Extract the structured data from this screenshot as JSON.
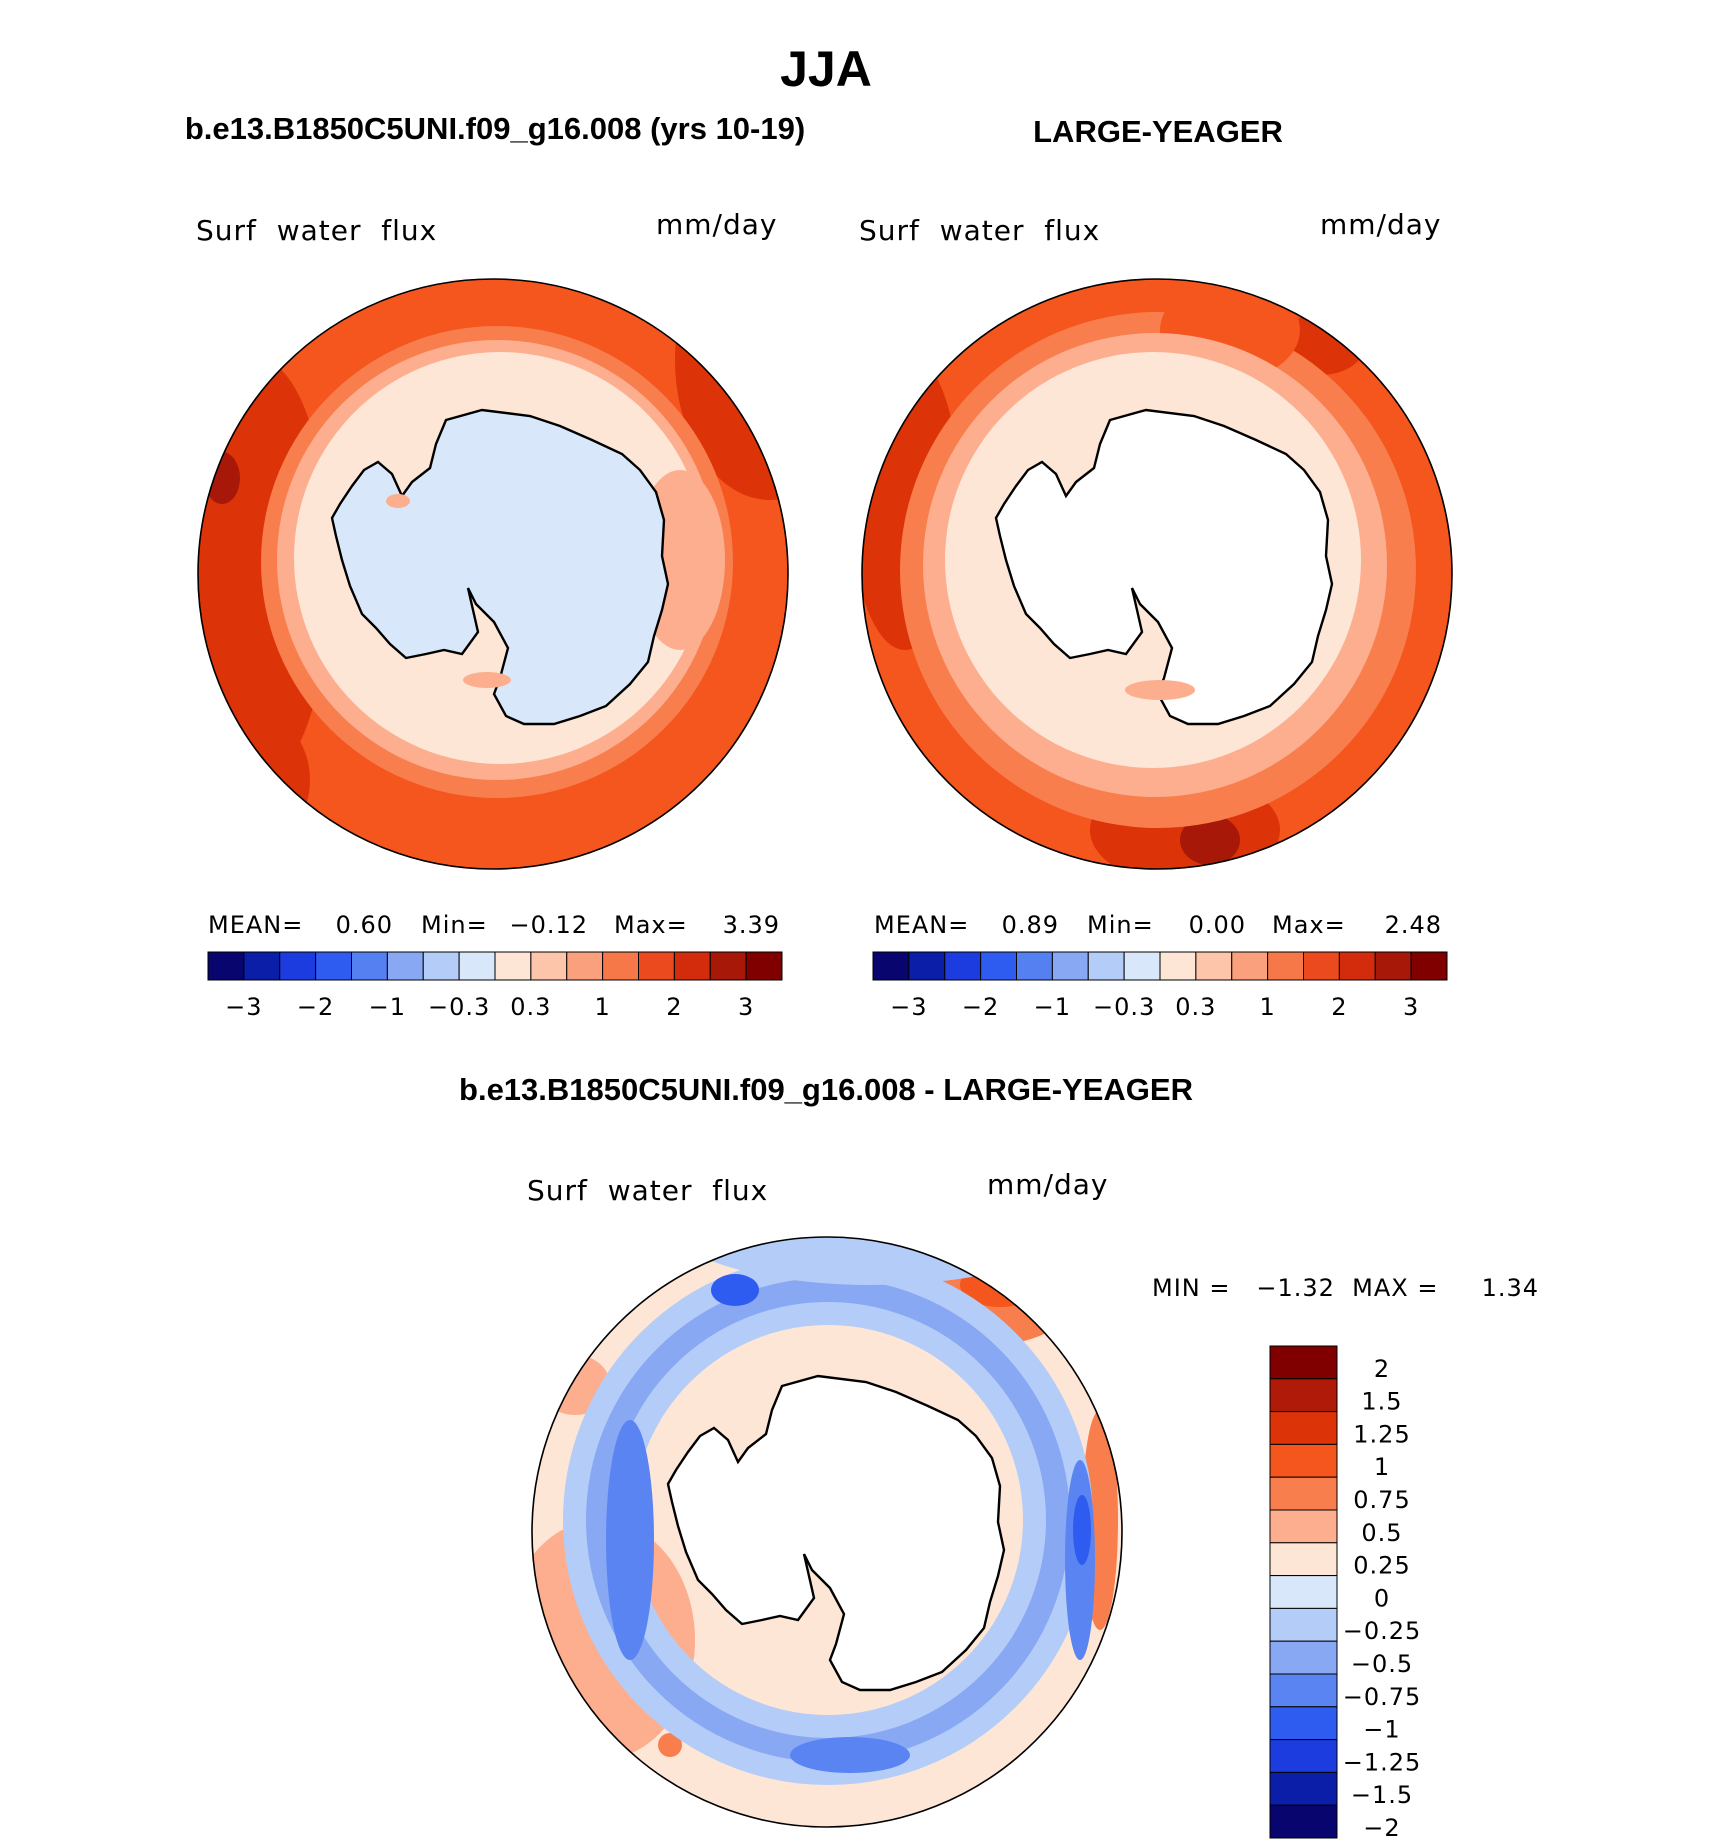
{
  "figure": {
    "title": "JJA",
    "panel_left_header": "b.e13.B1850C5UNI.f09_g16.008 (yrs 10-19)",
    "panel_right_header": "LARGE-YEAGER",
    "diff_header": "b.e13.B1850C5UNI.f09_g16.008 - LARGE-YEAGER"
  },
  "panels": [
    {
      "variable": "Surf  water  flux",
      "units": "mm/day",
      "stats": {
        "mean_label": "MEAN=",
        "mean": "0.60",
        "min_label": "Min=",
        "min": "−0.12",
        "max_label": "Max=",
        "max": "3.39"
      }
    },
    {
      "variable": "Surf  water  flux",
      "units": "mm/day",
      "stats": {
        "mean_label": "MEAN=",
        "mean": "0.89",
        "min_label": "Min=",
        "min": "0.00",
        "max_label": "Max=",
        "max": "2.48"
      }
    },
    {
      "variable": "Surf  water  flux",
      "units": "mm/day",
      "stats": {
        "text": "MIN =   −1.32  MAX =     1.34"
      }
    }
  ],
  "colorbar_horizontal": {
    "colors": [
      "#08066e",
      "#0a1ea8",
      "#1c3ce0",
      "#2f5cf0",
      "#5580f2",
      "#88a8f4",
      "#b4ccf8",
      "#d8e8fa",
      "#fde6d6",
      "#fdc6aa",
      "#fba07c",
      "#f67848",
      "#ea4a1e",
      "#d22c0c",
      "#a81808",
      "#800000"
    ],
    "tick_labels": [
      "−3",
      "−2",
      "−1",
      "−0.3",
      "0.3",
      "1",
      "2",
      "3"
    ]
  },
  "colorbar_vertical": {
    "colors": [
      "#800000",
      "#b01a08",
      "#dc3408",
      "#f4561e",
      "#f87e4e",
      "#fcae8e",
      "#fde6d6",
      "#d8e8fa",
      "#b4ccf8",
      "#88a8f4",
      "#5a84f2",
      "#2f5cf0",
      "#1c3ce0",
      "#0a1ea8",
      "#08066e"
    ],
    "tick_labels": [
      "2",
      "1.5",
      "1.25",
      "1",
      "0.75",
      "0.5",
      "0.25",
      "0",
      "−0.25",
      "−0.5",
      "−0.75",
      "−1",
      "−1.25",
      "−1.5",
      "−2"
    ]
  },
  "map_colors": {
    "land": "#ffffff",
    "coast": "#000000",
    "ice_blue": "#d8e8fa",
    "light_peach": "#fde6d6",
    "peach": "#fcae8e",
    "salmon": "#f87e4e",
    "orange_red": "#f4561e",
    "red": "#dc3408",
    "dark_red": "#a81808",
    "neg_light": "#b4ccf8",
    "neg_mid": "#88a8f4",
    "neg_strong": "#2f5cf0"
  }
}
